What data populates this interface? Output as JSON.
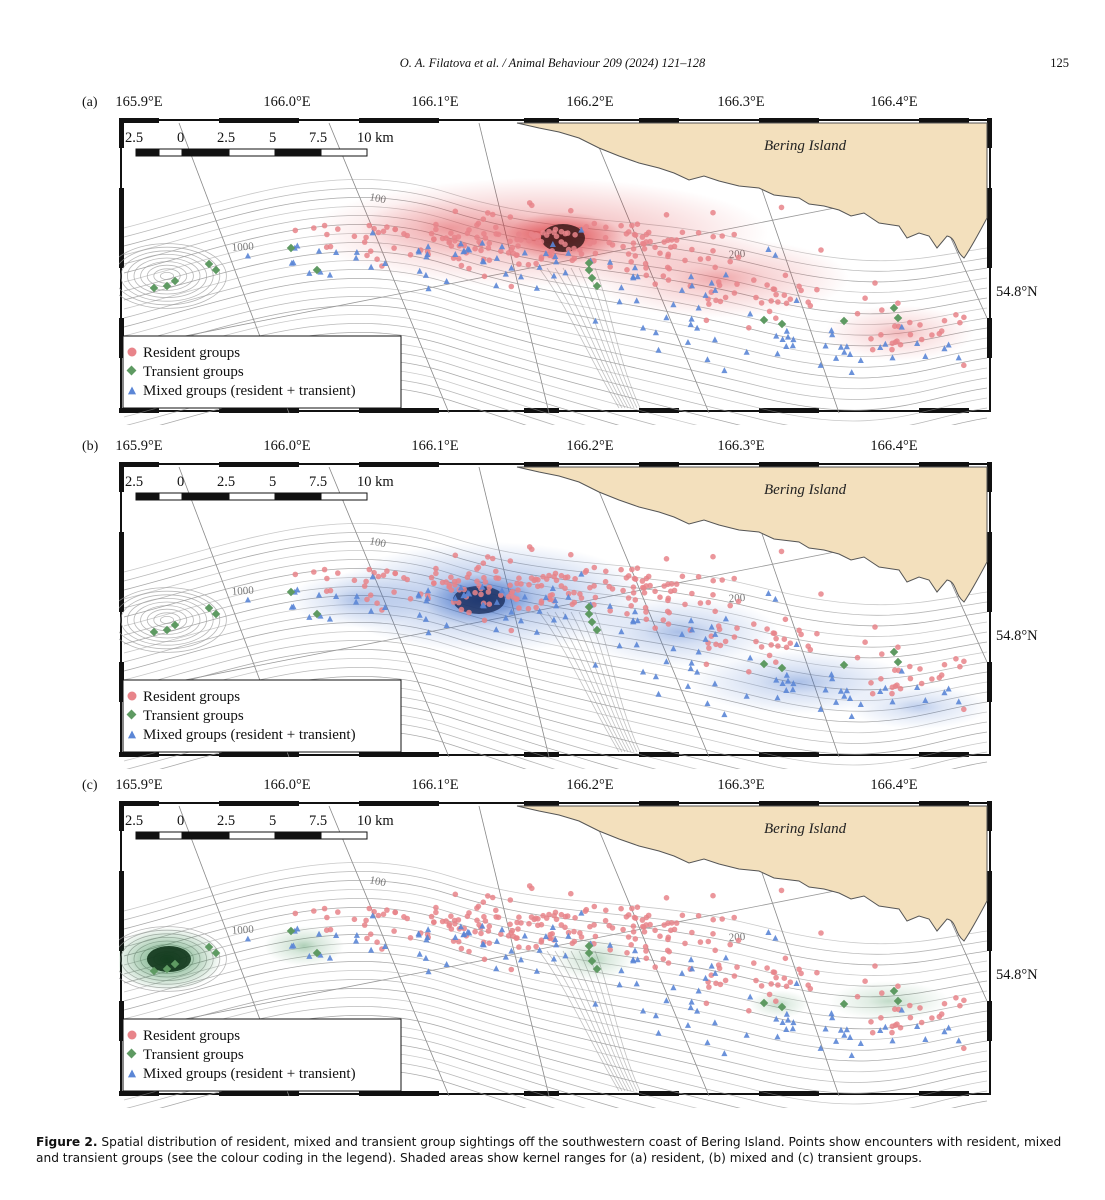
{
  "header": {
    "citation": "O. A. Filatova et al. / Animal Behaviour 209 (2024) 121–128",
    "page_number": "125"
  },
  "longitude_ticks": [
    "165.9°E",
    "166.0°E",
    "166.1°E",
    "166.2°E",
    "166.3°E",
    "166.4°E"
  ],
  "latitude_tick": "54.8°N",
  "scale_bar": {
    "labels": [
      "2.5",
      "0",
      "2.5",
      "5",
      "7.5",
      "10 km"
    ]
  },
  "island_label": "Bering Island",
  "depth_labels": [
    "1000",
    "100",
    "200"
  ],
  "legend": {
    "resident": "Resident groups",
    "transient": "Transient groups",
    "mixed": "Mixed groups (resident + transient)"
  },
  "colors": {
    "resident": "#e8848a",
    "transient": "#5e9a62",
    "mixed": "#5b86d6",
    "land": "#f3e0bd",
    "kernel_a": "#d9282e",
    "kernel_b": "#2f63c4",
    "kernel_c": "#1c7a36"
  },
  "panels": [
    {
      "label": "(a)",
      "kernel": "resident"
    },
    {
      "label": "(b)",
      "kernel": "mixed"
    },
    {
      "label": "(c)",
      "kernel": "transient"
    }
  ],
  "caption": {
    "figure_label": "Figure 2.",
    "text": "Spatial distribution of resident, mixed and transient group sightings off the southwestern coast of Bering Island. Points show encounters with resident, mixed and transient groups (see the colour coding in the legend). Shaded areas show kernel ranges for (a) resident, (b) mixed and (c) transient groups."
  }
}
